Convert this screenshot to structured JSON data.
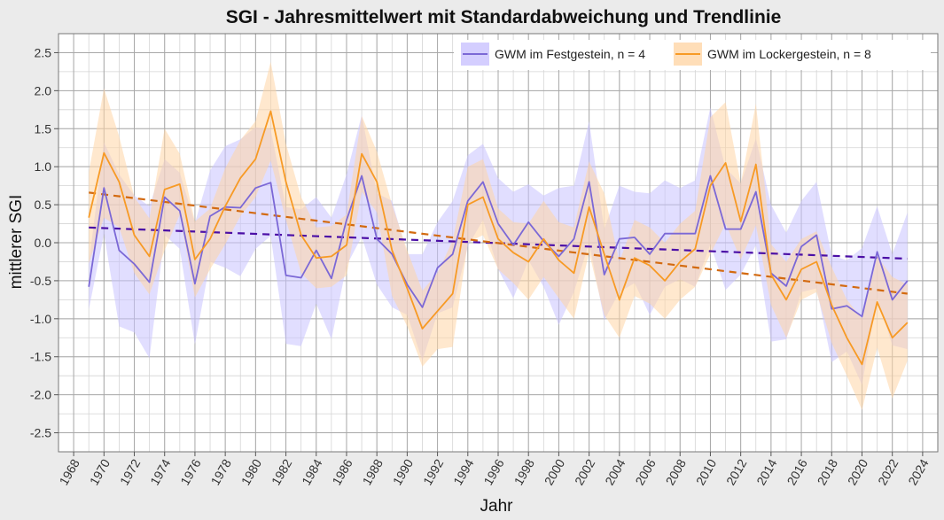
{
  "chart_data": {
    "type": "line",
    "title": "SGI - Jahresmittelwert mit Standardabweichung und Trendlinie",
    "xlabel": "Jahr",
    "ylabel": "mittlerer SGI",
    "xlim": [
      1967,
      2025
    ],
    "ylim": [
      -2.75,
      2.75
    ],
    "x_ticks": [
      "1968",
      "1970",
      "1972",
      "1974",
      "1976",
      "1978",
      "1980",
      "1982",
      "1984",
      "1986",
      "1988",
      "1990",
      "1992",
      "1994",
      "1996",
      "1998",
      "2000",
      "2002",
      "2004",
      "2006",
      "2008",
      "2010",
      "2012",
      "2014",
      "2016",
      "2018",
      "2020",
      "2022",
      "2024"
    ],
    "y_ticks": [
      "-2.5",
      "-2.0",
      "-1.5",
      "-1.0",
      "-0.5",
      "0.0",
      "0.5",
      "1.0",
      "1.5",
      "2.0",
      "2.5"
    ],
    "grid": true,
    "legend_position": "top-right",
    "x": [
      1969,
      1970,
      1971,
      1972,
      1973,
      1974,
      1975,
      1976,
      1977,
      1978,
      1979,
      1980,
      1981,
      1982,
      1983,
      1984,
      1985,
      1986,
      1987,
      1988,
      1989,
      1990,
      1991,
      1992,
      1993,
      1994,
      1995,
      1996,
      1997,
      1998,
      1999,
      2000,
      2001,
      2002,
      2003,
      2004,
      2005,
      2006,
      2007,
      2008,
      2009,
      2010,
      2011,
      2012,
      2013,
      2014,
      2015,
      2016,
      2017,
      2018,
      2019,
      2020,
      2021,
      2022,
      2023
    ],
    "series": [
      {
        "name": "GWM im Festgestein, n = 4",
        "color": "#7b68d6",
        "band_color": "#c9c2ff",
        "values": [
          -0.58,
          0.72,
          -0.1,
          -0.28,
          -0.52,
          0.6,
          0.42,
          -0.54,
          0.35,
          0.47,
          0.46,
          0.72,
          0.79,
          -0.43,
          -0.46,
          -0.1,
          -0.47,
          0.3,
          0.88,
          0.05,
          -0.15,
          -0.55,
          -0.85,
          -0.33,
          -0.15,
          0.55,
          0.8,
          0.25,
          -0.03,
          0.27,
          0.02,
          -0.18,
          0.05,
          0.8,
          -0.42,
          0.05,
          0.07,
          -0.15,
          0.12,
          0.12,
          0.12,
          0.88,
          0.18,
          0.18,
          0.67,
          -0.4,
          -0.57,
          -0.05,
          0.1,
          -0.87,
          -0.83,
          -0.97,
          -0.12,
          -0.75,
          -0.5
        ],
        "sd": [
          0.3,
          0.6,
          1.0,
          0.9,
          1.0,
          0.5,
          0.5,
          0.8,
          0.6,
          0.8,
          0.9,
          0.8,
          0.7,
          0.9,
          0.9,
          0.7,
          0.8,
          0.6,
          0.8,
          0.6,
          0.7,
          0.4,
          0.7,
          0.6,
          0.7,
          0.6,
          0.5,
          0.6,
          0.7,
          0.5,
          0.6,
          0.9,
          0.7,
          0.8,
          0.6,
          0.7,
          0.6,
          0.8,
          0.7,
          0.6,
          0.7,
          0.9,
          0.8,
          0.6,
          0.7,
          0.9,
          0.7,
          0.6,
          0.7,
          0.7,
          0.6,
          0.9,
          0.6,
          0.6,
          0.9
        ],
        "trend": [
          0.2,
          -0.21
        ]
      },
      {
        "name": "GWM im Lockergestein, n = 8",
        "color": "#f79a25",
        "band_color": "#ffd6a6",
        "values": [
          0.33,
          1.18,
          0.8,
          0.1,
          -0.18,
          0.7,
          0.77,
          -0.22,
          0.05,
          0.48,
          0.85,
          1.1,
          1.73,
          0.8,
          0.1,
          -0.2,
          -0.18,
          -0.03,
          1.17,
          0.8,
          -0.1,
          -0.6,
          -1.13,
          -0.9,
          -0.67,
          0.5,
          0.6,
          0.05,
          -0.13,
          -0.25,
          0.05,
          -0.23,
          -0.4,
          0.47,
          -0.15,
          -0.75,
          -0.2,
          -0.3,
          -0.5,
          -0.25,
          -0.08,
          0.75,
          1.05,
          0.28,
          1.03,
          -0.42,
          -0.75,
          -0.35,
          -0.25,
          -0.82,
          -1.25,
          -1.6,
          -0.78,
          -1.25,
          -1.05
        ],
        "sd": [
          0.6,
          0.85,
          0.6,
          0.5,
          0.5,
          0.8,
          0.4,
          0.5,
          0.4,
          0.5,
          0.5,
          0.5,
          0.65,
          0.5,
          0.5,
          0.4,
          0.4,
          0.4,
          0.5,
          0.4,
          0.6,
          0.5,
          0.5,
          0.5,
          0.7,
          0.5,
          0.5,
          0.4,
          0.4,
          0.5,
          0.5,
          0.5,
          0.6,
          0.6,
          0.8,
          0.5,
          0.5,
          0.5,
          0.5,
          0.5,
          0.5,
          0.9,
          0.8,
          0.5,
          0.8,
          0.4,
          0.5,
          0.4,
          0.4,
          0.5,
          0.5,
          0.6,
          0.6,
          0.8,
          0.5
        ],
        "trend": [
          0.66,
          -0.67
        ]
      }
    ]
  }
}
